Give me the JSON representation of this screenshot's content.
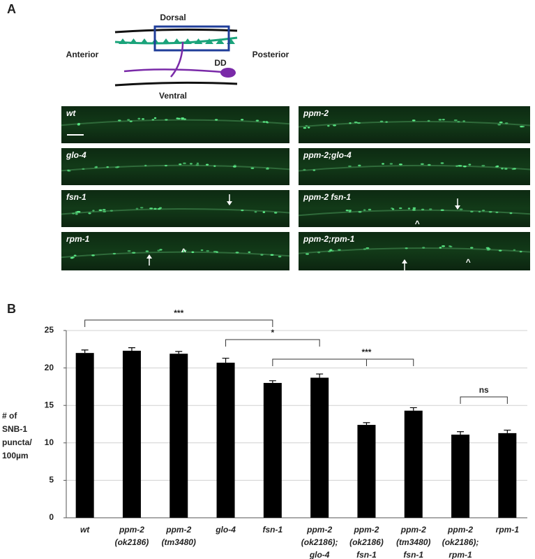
{
  "panel_a": {
    "label": "A",
    "diagram": {
      "dorsal": "Dorsal",
      "ventral": "Ventral",
      "anterior": "Anterior",
      "posterior": "Posterior",
      "neuron": "DD"
    },
    "images": [
      "wt",
      "ppm-2",
      "glo-4",
      "ppm-2;glo-4",
      "fsn-1",
      "ppm-2 fsn-1",
      "rpm-1",
      "ppm-2;rpm-1"
    ],
    "carets": [
      "^",
      "^",
      "^"
    ]
  },
  "chart_data": {
    "type": "bar",
    "panel_label": "B",
    "y_label": [
      "# of",
      "SNB-1",
      "puncta/",
      "100µm"
    ],
    "categories": [
      [
        "wt"
      ],
      [
        "ppm-2",
        "(ok2186)"
      ],
      [
        "ppm-2",
        "(tm3480)"
      ],
      [
        "glo-4"
      ],
      [
        "fsn-1"
      ],
      [
        "ppm-2",
        "(ok2186);",
        "glo-4"
      ],
      [
        "ppm-2",
        "(ok2186)",
        "fsn-1"
      ],
      [
        "ppm-2",
        "(tm3480)",
        "fsn-1"
      ],
      [
        "ppm-2",
        "(ok2186);",
        "rpm-1"
      ],
      [
        "rpm-1"
      ]
    ],
    "values": [
      22.0,
      22.3,
      21.9,
      20.7,
      18.0,
      18.7,
      12.4,
      14.3,
      11.1,
      11.3
    ],
    "errors": [
      0.4,
      0.4,
      0.3,
      0.6,
      0.3,
      0.5,
      0.3,
      0.4,
      0.4,
      0.4
    ],
    "color": "#000000",
    "ylim": [
      0,
      25
    ],
    "yticks": [
      0,
      5,
      10,
      15,
      20,
      25
    ],
    "grid": true,
    "annotations": [
      "***",
      "*",
      "***",
      "ns"
    ]
  }
}
